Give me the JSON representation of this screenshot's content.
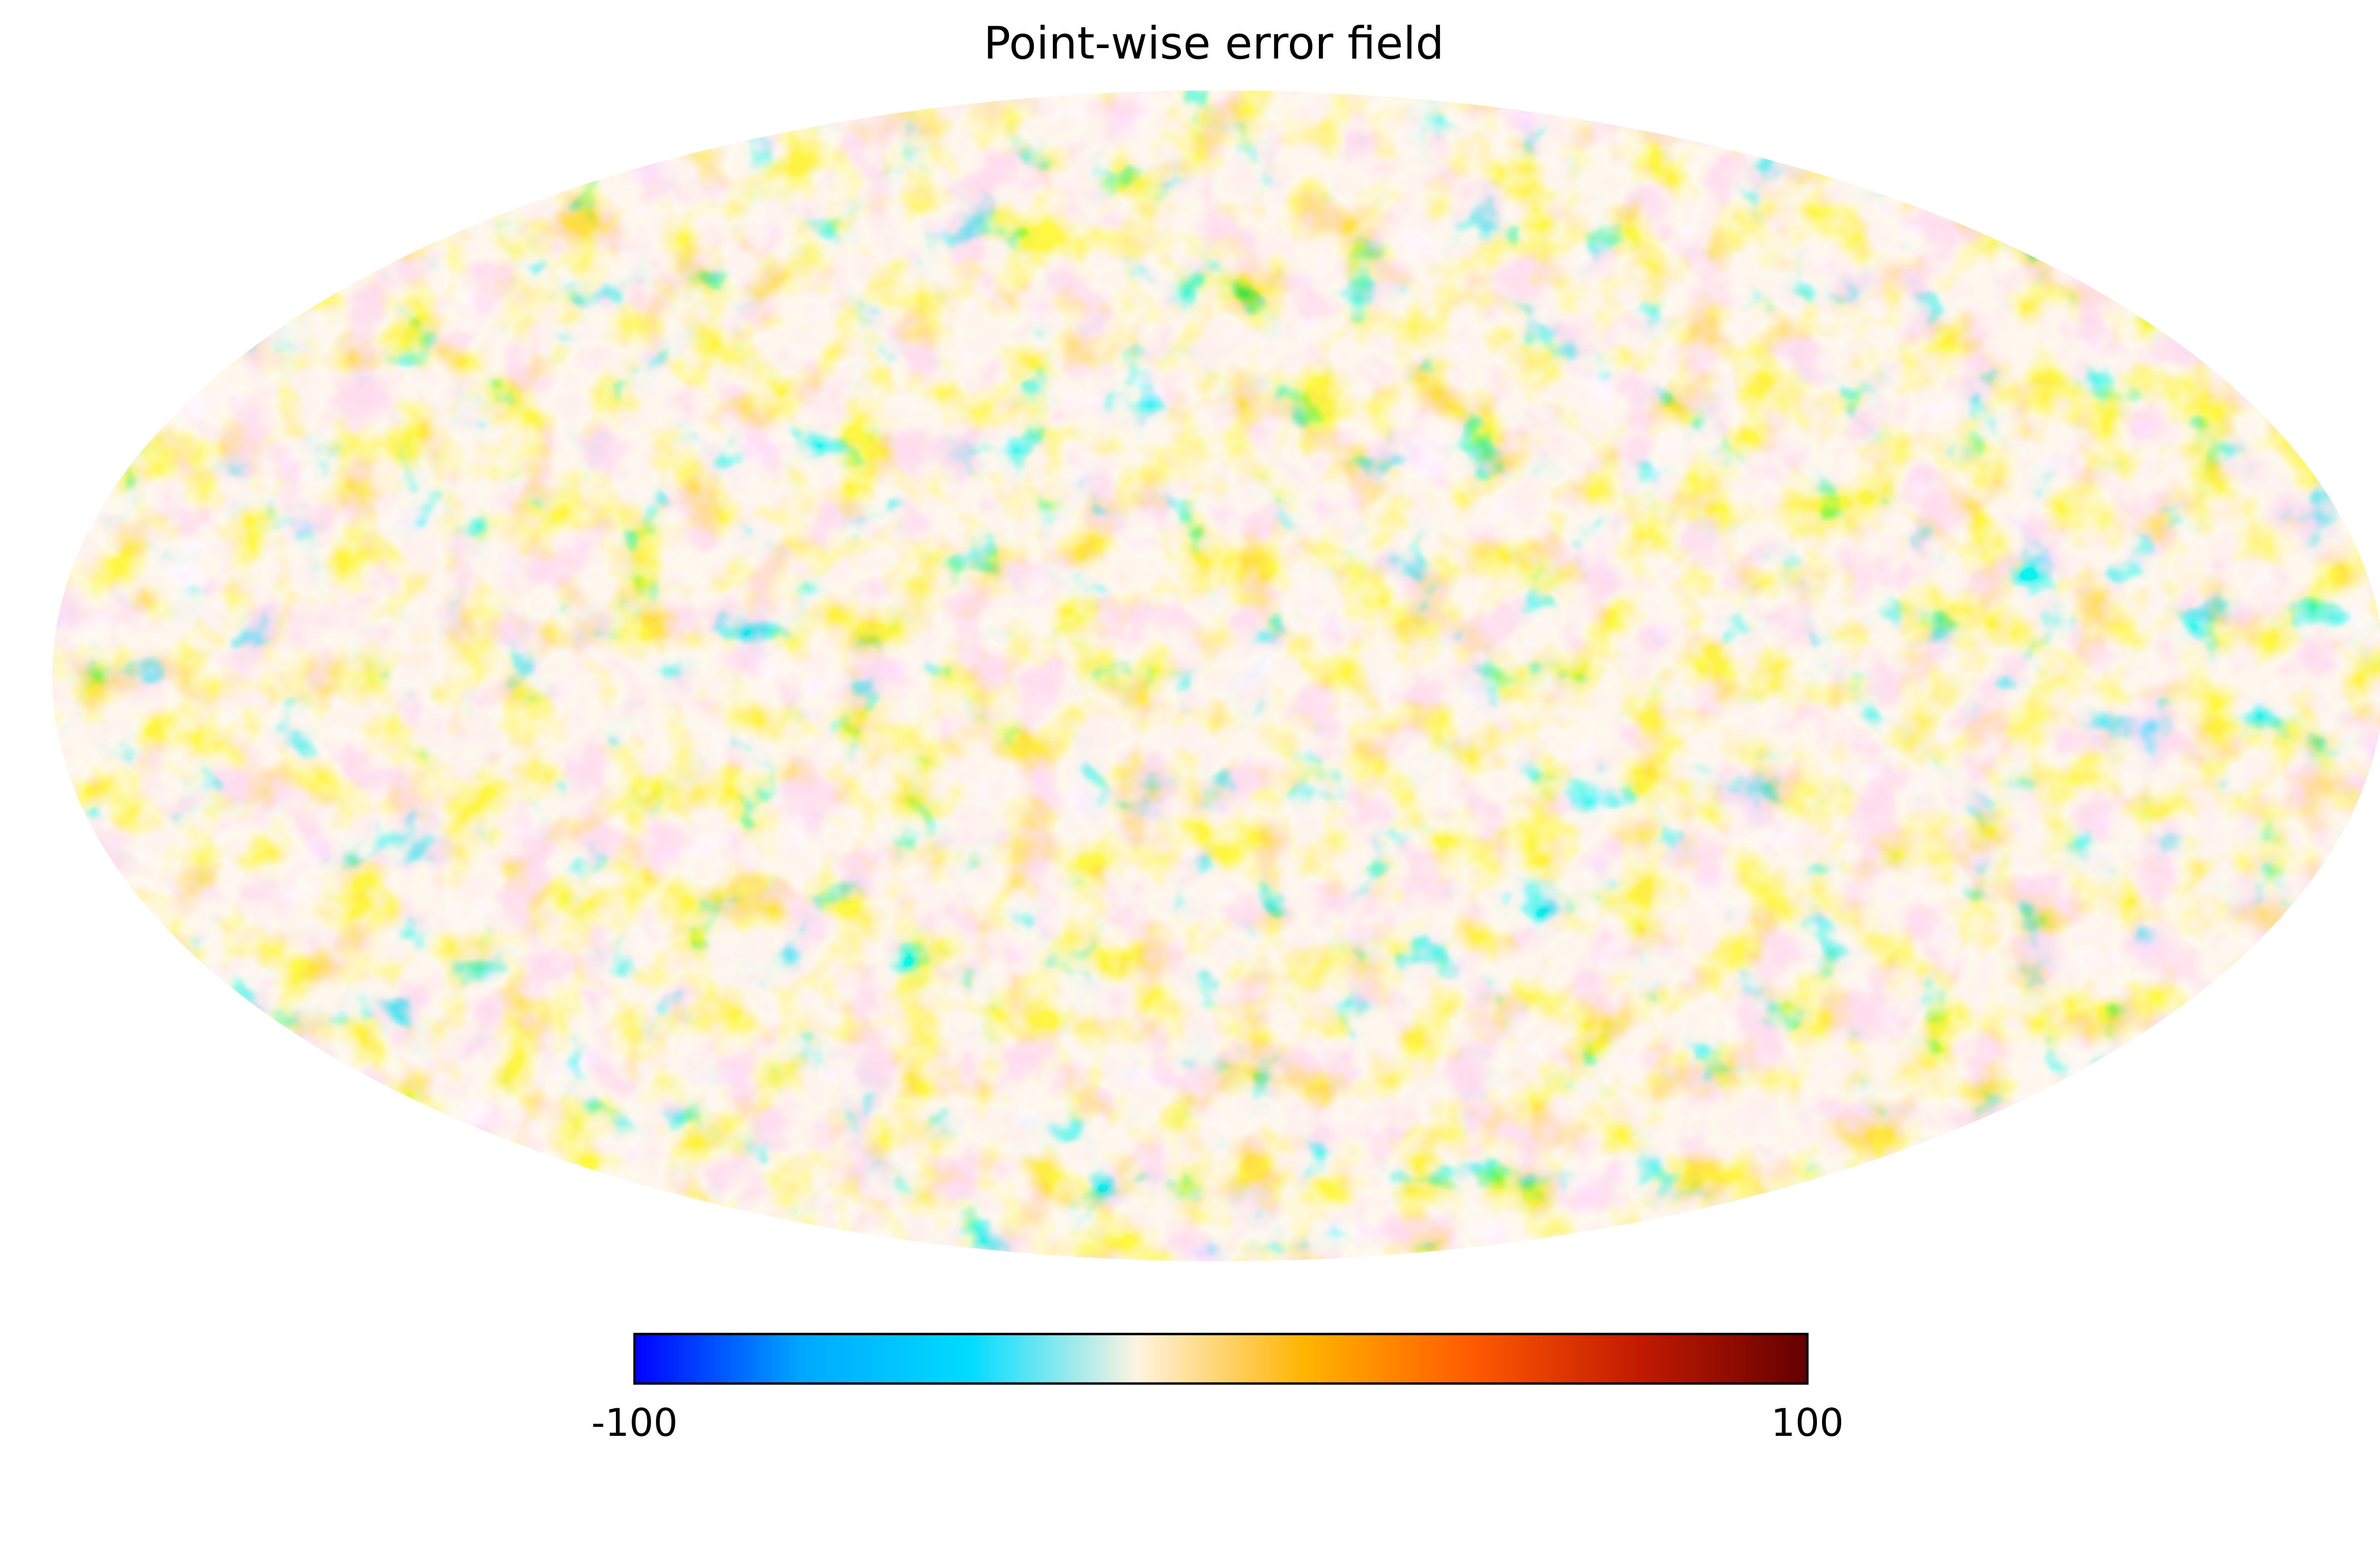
{
  "chart_data": {
    "type": "heatmap",
    "projection": "mollweide",
    "title": "Point-wise error field",
    "colormap": {
      "name": "planck",
      "stops": [
        "#0000ff",
        "#00a8ff",
        "#00dcff",
        "#fff3e0",
        "#ffb400",
        "#ff5a00",
        "#c21a00",
        "#640000"
      ],
      "min": -100,
      "max": 100
    },
    "colorbar": {
      "orientation": "horizontal",
      "ticks": [
        {
          "value": -100,
          "label": "-100"
        },
        {
          "value": 100,
          "label": "100"
        }
      ]
    },
    "field_range_approx": [
      -45,
      40
    ],
    "grid": false
  }
}
